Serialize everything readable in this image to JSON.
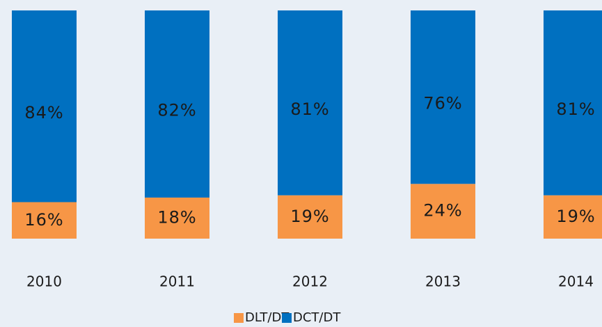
{
  "chart_data": {
    "type": "stacked_bar",
    "categories": [
      "2010",
      "2011",
      "2012",
      "2013",
      "2014"
    ],
    "series": [
      {
        "name": "DLT/DT",
        "color": "#f79646",
        "values": [
          16,
          18,
          19,
          24,
          19
        ],
        "value_labels": [
          "16%",
          "18%",
          "19%",
          "24%",
          "19%"
        ]
      },
      {
        "name": "DCT/DT",
        "color": "#0070c0",
        "values": [
          84,
          82,
          81,
          76,
          81
        ],
        "value_labels": [
          "84%",
          "82%",
          "81%",
          "76%",
          "81%"
        ]
      }
    ]
  }
}
